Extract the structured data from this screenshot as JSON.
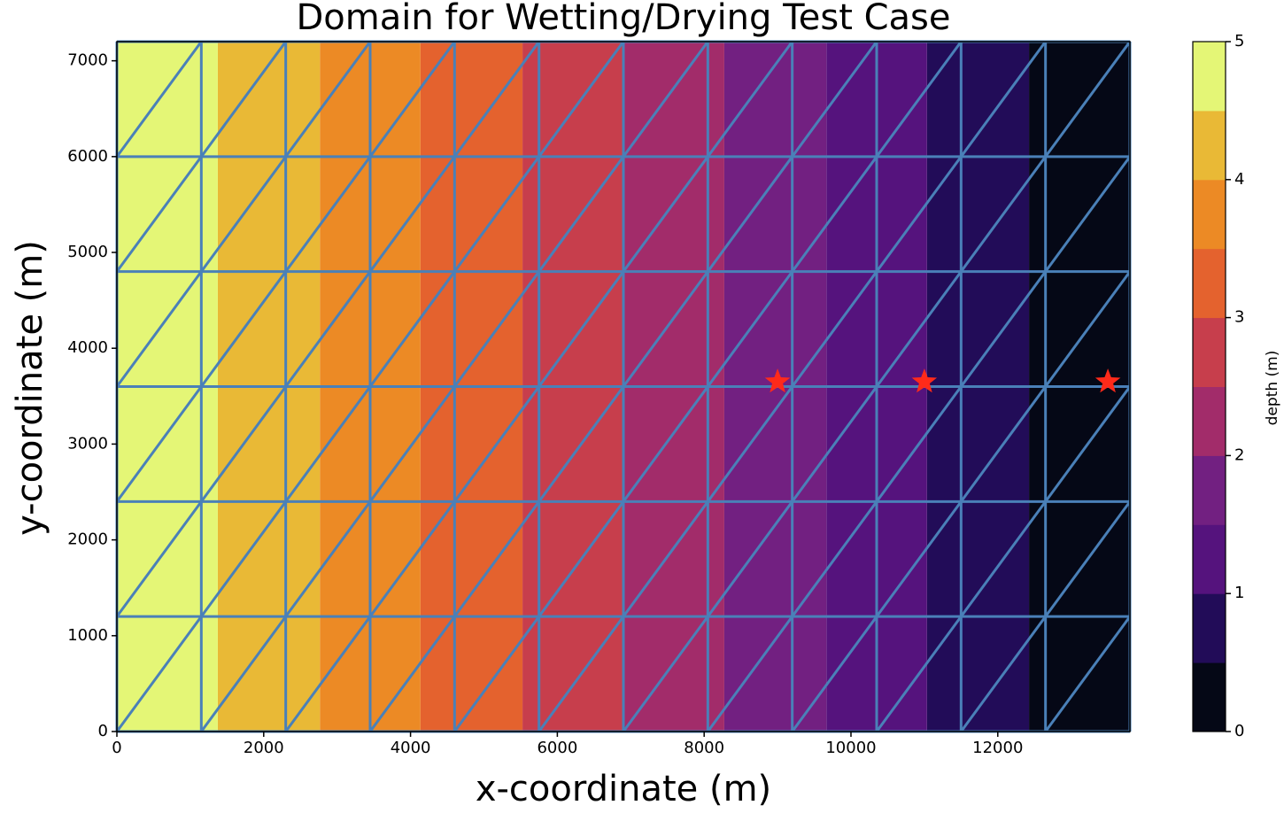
{
  "chart_data": {
    "type": "contourf",
    "title": "Domain for Wetting/Drying Test Case",
    "xlabel": "x-coordinate (m)",
    "ylabel": "y-coordinate (m)",
    "xlim": [
      0,
      13800
    ],
    "ylim": [
      0,
      7200
    ],
    "xticks": [
      0,
      2000,
      4000,
      6000,
      8000,
      10000,
      12000
    ],
    "yticks": [
      0,
      1000,
      2000,
      3000,
      4000,
      5000,
      6000,
      7000
    ],
    "field": {
      "x": [
        0,
        1150,
        2300,
        3450,
        4600,
        5750,
        6900,
        8050,
        9200,
        10350,
        11500,
        12650,
        13800
      ],
      "values": [
        5,
        4.58,
        4.17,
        3.75,
        3.33,
        2.92,
        2.5,
        2.08,
        1.67,
        1.25,
        0.83,
        0.42,
        0
      ]
    },
    "levels": [
      0,
      0.5,
      1,
      1.5,
      2,
      2.5,
      3,
      3.5,
      4,
      4.5,
      5
    ],
    "colors": [
      "#050816",
      "#220c58",
      "#55137d",
      "#722081",
      "#a22c6a",
      "#c73e4c",
      "#e4622e",
      "#ec8a25",
      "#e9b936",
      "#e4f676"
    ],
    "mesh": {
      "x": [
        0,
        1150,
        2300,
        3450,
        4600,
        5750,
        6900,
        8050,
        9200,
        10350,
        11500,
        12650,
        13800
      ],
      "y": [
        0,
        1200,
        2400,
        3600,
        4800,
        6000,
        7200
      ],
      "color": "#4a80b8"
    },
    "markers": {
      "x": [
        9000,
        11000,
        13500
      ],
      "y": [
        3650,
        3650,
        3650
      ],
      "color": "#ff2a1a"
    },
    "colorbar": {
      "label": "depth (m)",
      "ticks": [
        0,
        1,
        2,
        3,
        4,
        5
      ]
    }
  }
}
